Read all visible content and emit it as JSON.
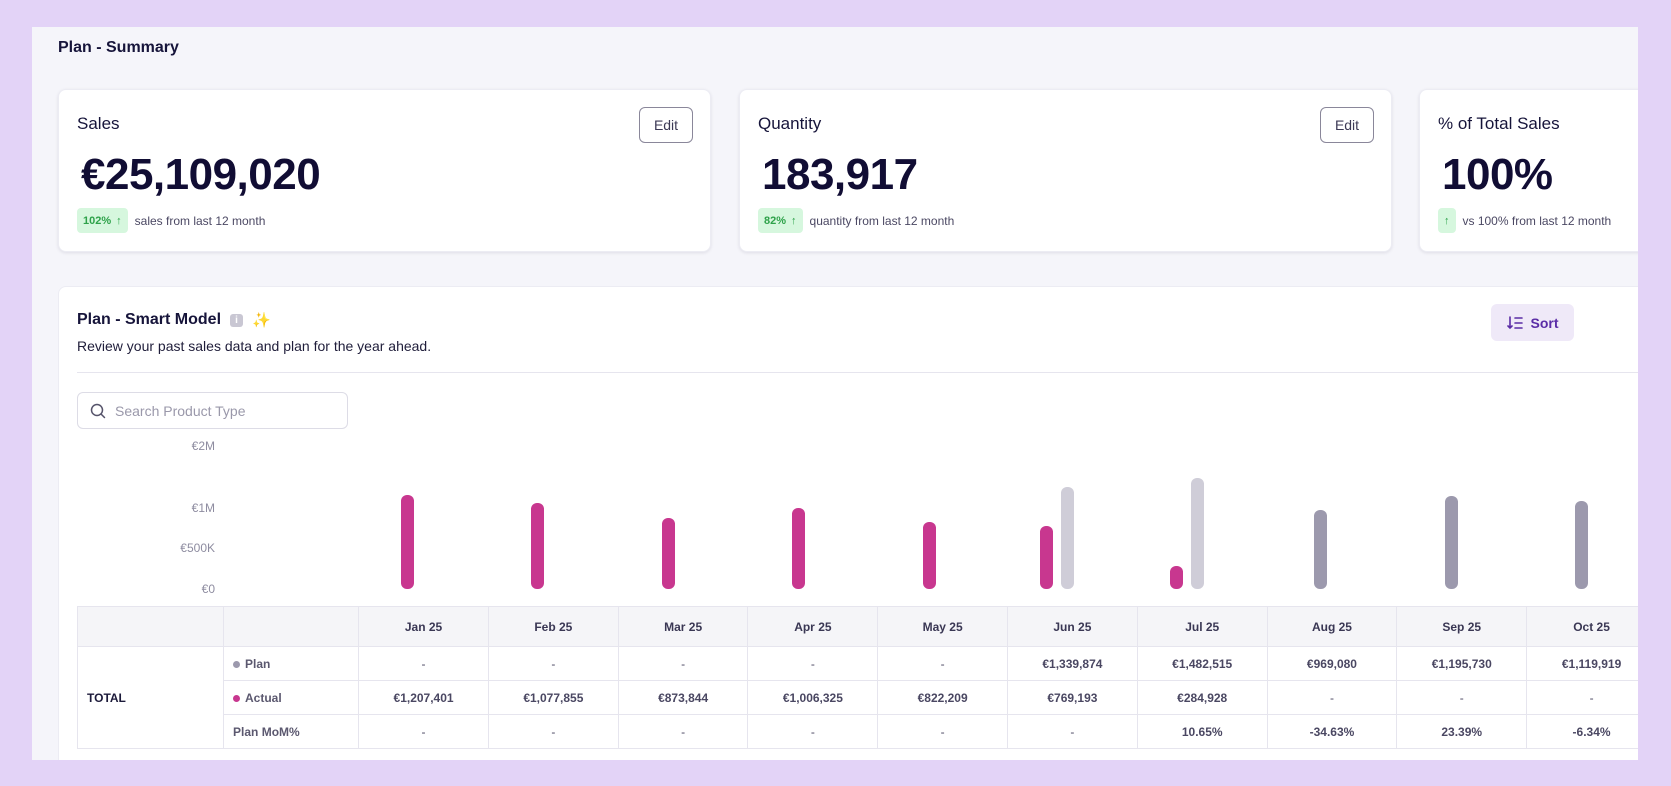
{
  "page": {
    "title": "Plan - Summary"
  },
  "cards": [
    {
      "title": "Sales",
      "value": "€25,109,020",
      "edit": "Edit",
      "badge": "102%",
      "badge_text": "sales from last 12 month"
    },
    {
      "title": "Quantity",
      "value": "183,917",
      "edit": "Edit",
      "badge": "82%",
      "badge_text": "quantity from last 12 month"
    },
    {
      "title": "% of Total Sales",
      "value": "100%",
      "badge": "",
      "badge_text": "vs 100% from last 12 month"
    }
  ],
  "panel": {
    "title": "Plan - Smart Model",
    "info": "i",
    "subtitle": "Review your past sales data and plan for the year ahead.",
    "sort_label": "Sort",
    "search_placeholder": "Search Product Type"
  },
  "colors": {
    "actual": "#c8378f",
    "plan": "#9c99ad",
    "plan_light": "#cfcdd8",
    "badge_green": "#2ea24a"
  },
  "chart_data": {
    "type": "bar",
    "categories": [
      "Jan 25",
      "Feb 25",
      "Mar 25",
      "Apr 25",
      "May 25",
      "Jun 25",
      "Jul 25",
      "Aug 25",
      "Sep 25",
      "Oct 25"
    ],
    "series": [
      {
        "name": "Actual",
        "values": [
          1207401,
          1077855,
          873844,
          1006325,
          822209,
          769193,
          284928,
          null,
          null,
          null
        ]
      },
      {
        "name": "Plan",
        "values": [
          null,
          null,
          null,
          null,
          null,
          1339874,
          1482515,
          969080,
          1195730,
          1119919
        ]
      }
    ],
    "yticks": [
      "€0",
      "€500K",
      "€1M",
      "€2M"
    ],
    "ylim": [
      0,
      2000000
    ]
  },
  "table": {
    "group_label": "TOTAL",
    "columns": [
      "Jan 25",
      "Feb 25",
      "Mar 25",
      "Apr 25",
      "May 25",
      "Jun 25",
      "Jul 25",
      "Aug 25",
      "Sep 25",
      "Oct 25"
    ],
    "rows": [
      {
        "label": "Plan",
        "values": [
          "-",
          "-",
          "-",
          "-",
          "-",
          "€1,339,874",
          "€1,482,515",
          "€969,080",
          "€1,195,730",
          "€1,119,919"
        ]
      },
      {
        "label": "Actual",
        "values": [
          "€1,207,401",
          "€1,077,855",
          "€873,844",
          "€1,006,325",
          "€822,209",
          "€769,193",
          "€284,928",
          "-",
          "-",
          "-"
        ]
      },
      {
        "label": "Plan MoM%",
        "values": [
          "-",
          "-",
          "-",
          "-",
          "-",
          "-",
          "10.65%",
          "-34.63%",
          "23.39%",
          "-6.34%"
        ]
      }
    ]
  }
}
